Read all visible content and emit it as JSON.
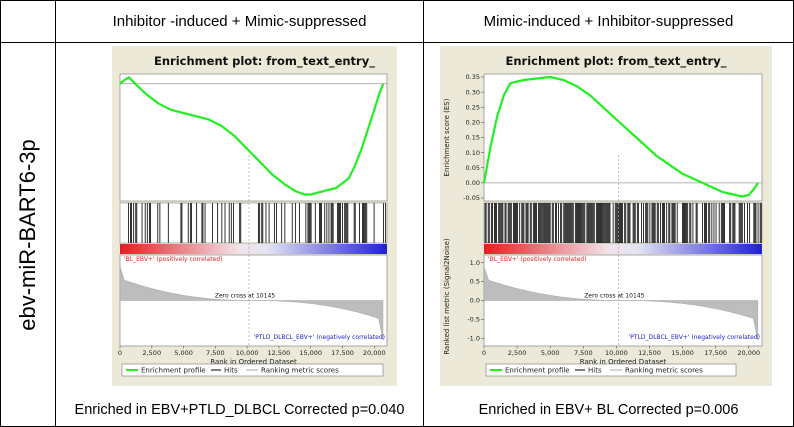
{
  "table": {
    "row_label": "ebv-miR-BART6-3p",
    "columns": [
      "Inhibitor -induced + Mimic-suppressed",
      "Mimic-induced + Inhibitor-suppressed"
    ],
    "footers": [
      "Enriched in  EBV+PTLD_DLBCL Corrected p=0.040",
      "Enriched in EBV+ BL Corrected p=0.006"
    ]
  },
  "colors": {
    "es_line": "#22ee22",
    "hits": "#000000",
    "pos_corr": "#e02020",
    "neg_corr": "#2020d0",
    "metric_fill": "#bdbdbd",
    "panel_bg": "#ece9d8"
  },
  "chart_data": [
    {
      "type": "line",
      "title": "Enrichment plot: from_text_entry_",
      "ylabel": "Enrichment score (ES)",
      "ylim": [
        -0.36,
        0.03
      ],
      "yticks": [
        0.0,
        -0.05,
        -0.1,
        -0.15,
        -0.2,
        -0.25,
        -0.3,
        -0.35
      ],
      "ytick_labels": [
        "0.00",
        "-0.05",
        "-0.10",
        "-0.15",
        "-0.20",
        "-0.25",
        "-0.30",
        "-0.35"
      ],
      "xlim": [
        0,
        21000
      ],
      "es_curve": {
        "x": [
          0,
          300,
          700,
          1200,
          2000,
          3000,
          4000,
          5000,
          6000,
          7000,
          8000,
          9000,
          10000,
          11000,
          12000,
          13000,
          13800,
          14500,
          15000,
          16000,
          17000,
          18000,
          18500,
          19000,
          19500,
          20000,
          20400,
          20700
        ],
        "y": [
          0.0,
          0.01,
          0.02,
          0.0,
          -0.03,
          -0.06,
          -0.08,
          -0.09,
          -0.1,
          -0.11,
          -0.13,
          -0.16,
          -0.2,
          -0.24,
          -0.28,
          -0.31,
          -0.33,
          -0.34,
          -0.34,
          -0.33,
          -0.32,
          -0.29,
          -0.25,
          -0.2,
          -0.14,
          -0.08,
          -0.03,
          0.0
        ]
      },
      "metric": {
        "ylabel": "Ranked list metric (Signal2Noise)",
        "ylim": [
          -1.2,
          1.2
        ],
        "yticks": [
          1.0,
          0.5,
          0.0,
          -0.5,
          -1.0
        ],
        "ytick_labels": [
          "1.0",
          "0.5",
          "0.0",
          "-0.5",
          "-1.0"
        ],
        "xticks": [
          0,
          2500,
          5000,
          7500,
          10000,
          12500,
          15000,
          17500,
          20000
        ],
        "xtick_labels": [
          "0",
          "2,500",
          "5,000",
          "7,500",
          "10,000",
          "12,500",
          "15,000",
          "17,500",
          "20,000"
        ],
        "xlabel": "Rank in Ordered Dataset",
        "zero_cross": 10145,
        "zero_cross_label": "Zero cross at 10145"
      },
      "pos_label": "'BL_EBV+' (positively correlated)",
      "neg_label": "'PTLD_DLBCL_EBV+' (negatively correlated)",
      "legend": [
        "Enrichment profile",
        "Hits",
        "Ranking metric scores"
      ]
    },
    {
      "type": "line",
      "title": "Enrichment plot: from_text_entry_",
      "ylabel": "Enrichment score (ES)",
      "ylim": [
        -0.06,
        0.36
      ],
      "yticks": [
        0.35,
        0.3,
        0.25,
        0.2,
        0.15,
        0.1,
        0.05,
        0.0,
        -0.05
      ],
      "ytick_labels": [
        "0.35",
        "0.30",
        "0.25",
        "0.20",
        "0.15",
        "0.10",
        "0.05",
        "0.00",
        "-0.05"
      ],
      "xlim": [
        0,
        21000
      ],
      "es_curve": {
        "x": [
          0,
          500,
          1000,
          1500,
          2000,
          3000,
          4000,
          5000,
          6000,
          7000,
          8000,
          9000,
          10000,
          11000,
          12000,
          13000,
          14000,
          15000,
          16000,
          17000,
          18000,
          19000,
          19500,
          20000,
          20400,
          20700
        ],
        "y": [
          0.0,
          0.12,
          0.22,
          0.29,
          0.33,
          0.34,
          0.345,
          0.35,
          0.34,
          0.32,
          0.29,
          0.25,
          0.21,
          0.17,
          0.13,
          0.09,
          0.06,
          0.03,
          0.01,
          -0.01,
          -0.03,
          -0.04,
          -0.045,
          -0.04,
          -0.02,
          0.0
        ]
      },
      "metric": {
        "ylabel": "Ranked list metric (Signal2Noise)",
        "ylim": [
          -1.2,
          1.2
        ],
        "yticks": [
          1.0,
          0.5,
          0.0,
          -0.5,
          -1.0
        ],
        "ytick_labels": [
          "1.0",
          "0.5",
          "0.0",
          "-0.5",
          "-1.0"
        ],
        "xticks": [
          0,
          2500,
          5000,
          7500,
          10000,
          12500,
          15000,
          17500,
          20000
        ],
        "xtick_labels": [
          "0",
          "2,500",
          "5,000",
          "7,500",
          "10,000",
          "12,500",
          "15,000",
          "17,500",
          "20,000"
        ],
        "xlabel": "Rank in Ordered Dataset",
        "zero_cross": 10145,
        "zero_cross_label": "Zero cross at 10145"
      },
      "pos_label": "'BL_EBV+' (positively correlated)",
      "neg_label": "'PTLD_DLBCL_EBV+' (negatively correlated)",
      "legend": [
        "Enrichment profile",
        "Hits",
        "Ranking metric scores"
      ]
    }
  ]
}
